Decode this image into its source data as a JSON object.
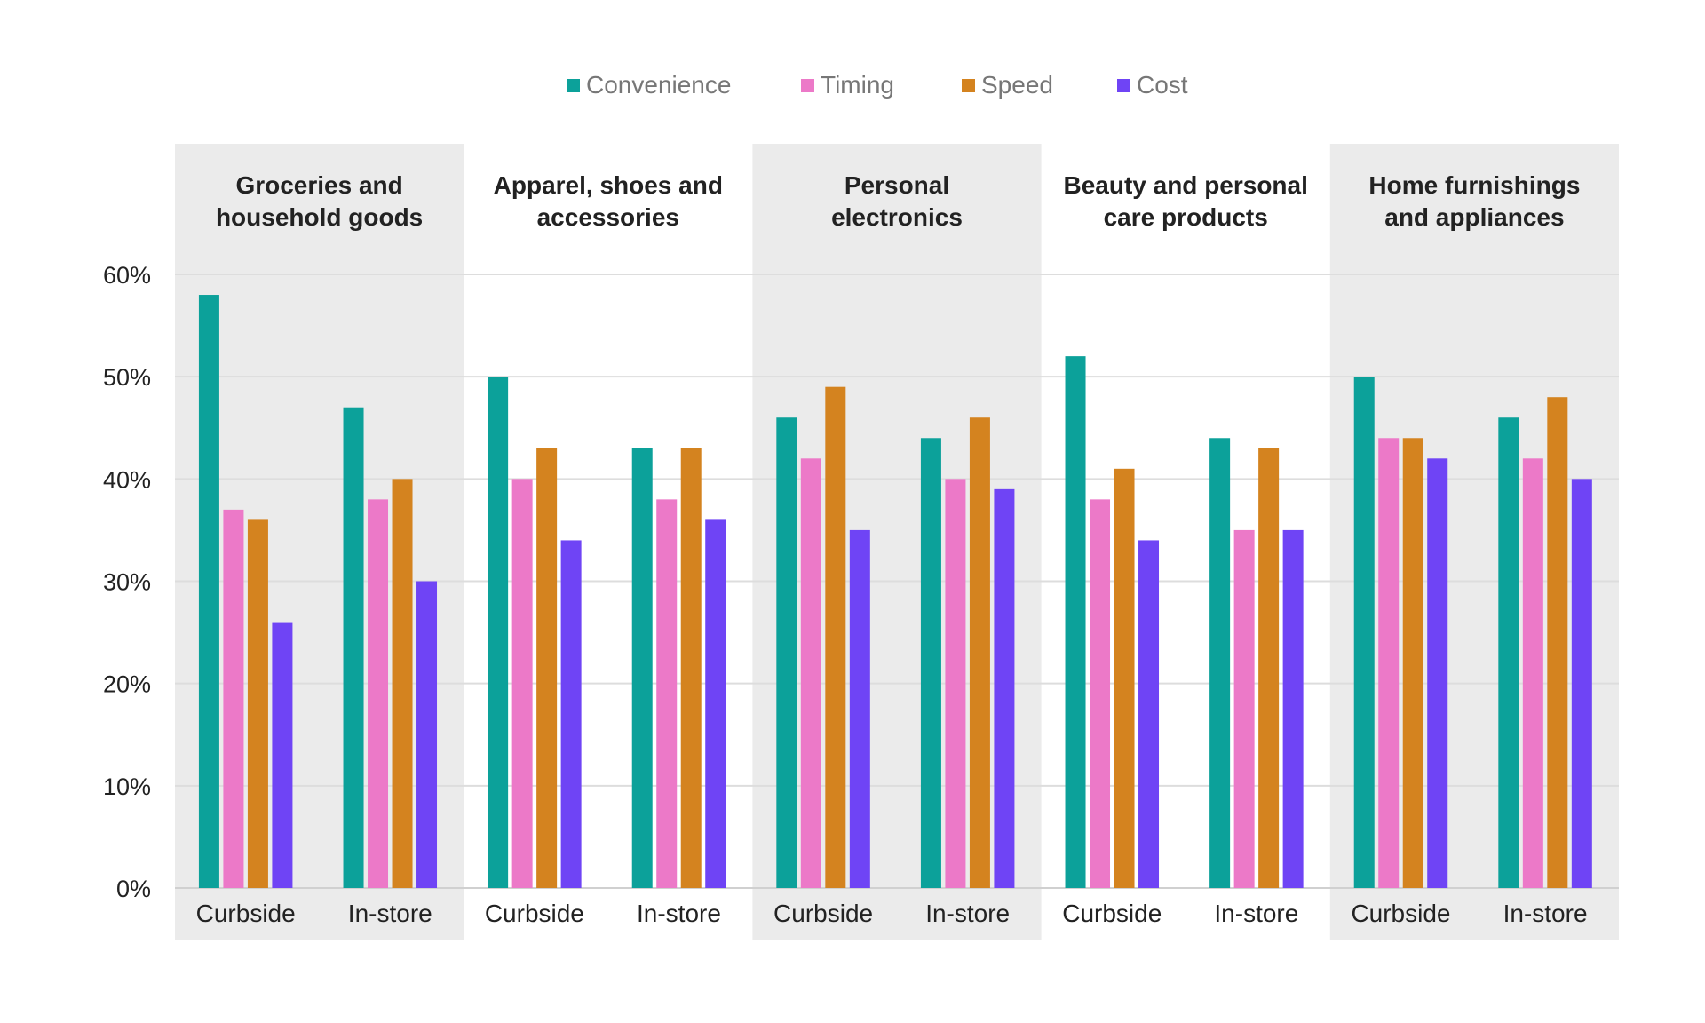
{
  "chart_data": {
    "type": "bar",
    "ylim": [
      0,
      60
    ],
    "y_ticks": [
      "0%",
      "10%",
      "20%",
      "30%",
      "40%",
      "50%",
      "60%"
    ],
    "y_tick_values": [
      0,
      10,
      20,
      30,
      40,
      50,
      60
    ],
    "grid": true,
    "legend_position": "top-center",
    "legend": [
      {
        "name": "Convenience",
        "color": "#0ca19a"
      },
      {
        "name": "Timing",
        "color": "#ec79c8"
      },
      {
        "name": "Speed",
        "color": "#d4831f"
      },
      {
        "name": "Cost",
        "color": "#6f44f5"
      }
    ],
    "groups": [
      {
        "title_lines": [
          "Groceries and",
          "household goods"
        ],
        "shaded": true,
        "categories": [
          {
            "label": "Curbside",
            "values": [
              58,
              37,
              36,
              26
            ]
          },
          {
            "label": "In-store",
            "values": [
              47,
              38,
              40,
              30
            ]
          }
        ]
      },
      {
        "title_lines": [
          "Apparel, shoes and",
          "accessories"
        ],
        "shaded": false,
        "categories": [
          {
            "label": "Curbside",
            "values": [
              50,
              40,
              43,
              34
            ]
          },
          {
            "label": "In-store",
            "values": [
              43,
              38,
              43,
              36
            ]
          }
        ]
      },
      {
        "title_lines": [
          "Personal",
          "electronics"
        ],
        "shaded": true,
        "categories": [
          {
            "label": "Curbside",
            "values": [
              46,
              42,
              49,
              35
            ]
          },
          {
            "label": "In-store",
            "values": [
              44,
              40,
              46,
              39
            ]
          }
        ]
      },
      {
        "title_lines": [
          "Beauty and personal",
          "care products"
        ],
        "shaded": false,
        "categories": [
          {
            "label": "Curbside",
            "values": [
              52,
              38,
              41,
              34
            ]
          },
          {
            "label": "In-store",
            "values": [
              44,
              35,
              43,
              35
            ]
          }
        ]
      },
      {
        "title_lines": [
          "Home furnishings",
          "and appliances"
        ],
        "shaded": true,
        "categories": [
          {
            "label": "Curbside",
            "values": [
              50,
              44,
              44,
              42
            ]
          },
          {
            "label": "In-store",
            "values": [
              46,
              42,
              48,
              40
            ]
          }
        ]
      }
    ]
  }
}
